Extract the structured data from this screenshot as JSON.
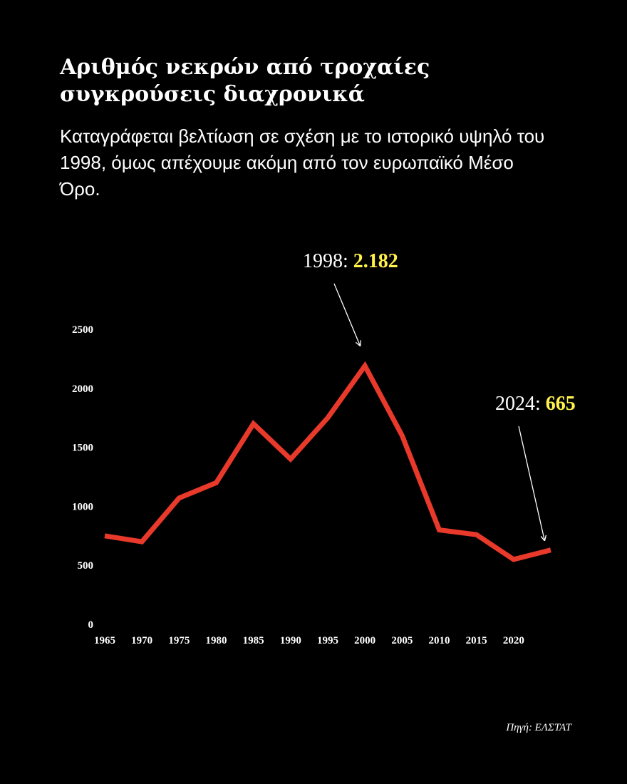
{
  "header": {
    "title": "Αριθμός νεκρών από τροχαίες συγκρούσεις διαχρονικά",
    "subtitle": "Καταγράφεται βελτίωση σε σχέση με το ιστορικό υψηλό του 1998, όμως απέχουμε ακόμη από τον ευρωπαϊκό Μέσο Όρο."
  },
  "footer": {
    "source": "Πηγή: ΕΛΣΤΑΤ"
  },
  "chart_data": {
    "type": "line",
    "x": [
      1965,
      1970,
      1975,
      1980,
      1985,
      1990,
      1995,
      2000,
      2005,
      2010,
      2015,
      2020,
      2025
    ],
    "series": [
      {
        "name": "",
        "color": "#e8392b",
        "values": [
          750,
          700,
          1070,
          1200,
          1700,
          1400,
          1750,
          2190,
          1600,
          800,
          760,
          550,
          630
        ]
      }
    ],
    "x_ticks": [
      "1965",
      "1970",
      "1975",
      "1980",
      "1985",
      "1990",
      "1995",
      "2000",
      "2005",
      "2010",
      "2015",
      "2020"
    ],
    "y_ticks": [
      "0",
      "500",
      "1000",
      "1500",
      "2000",
      "2500"
    ],
    "y_tick_values": [
      0,
      500,
      1000,
      1500,
      2000,
      2500
    ],
    "xlim": [
      1965,
      2025
    ],
    "ylim": [
      0,
      2500
    ],
    "grid": false,
    "legend": "none",
    "annotations": [
      {
        "year_label": "1998: ",
        "value_label": "2.182",
        "year": 1998,
        "value": 2182,
        "highlight_color": "#fff24a"
      },
      {
        "year_label": "2024: ",
        "value_label": "665",
        "year": 2024,
        "value": 665,
        "highlight_color": "#fff24a"
      }
    ]
  }
}
